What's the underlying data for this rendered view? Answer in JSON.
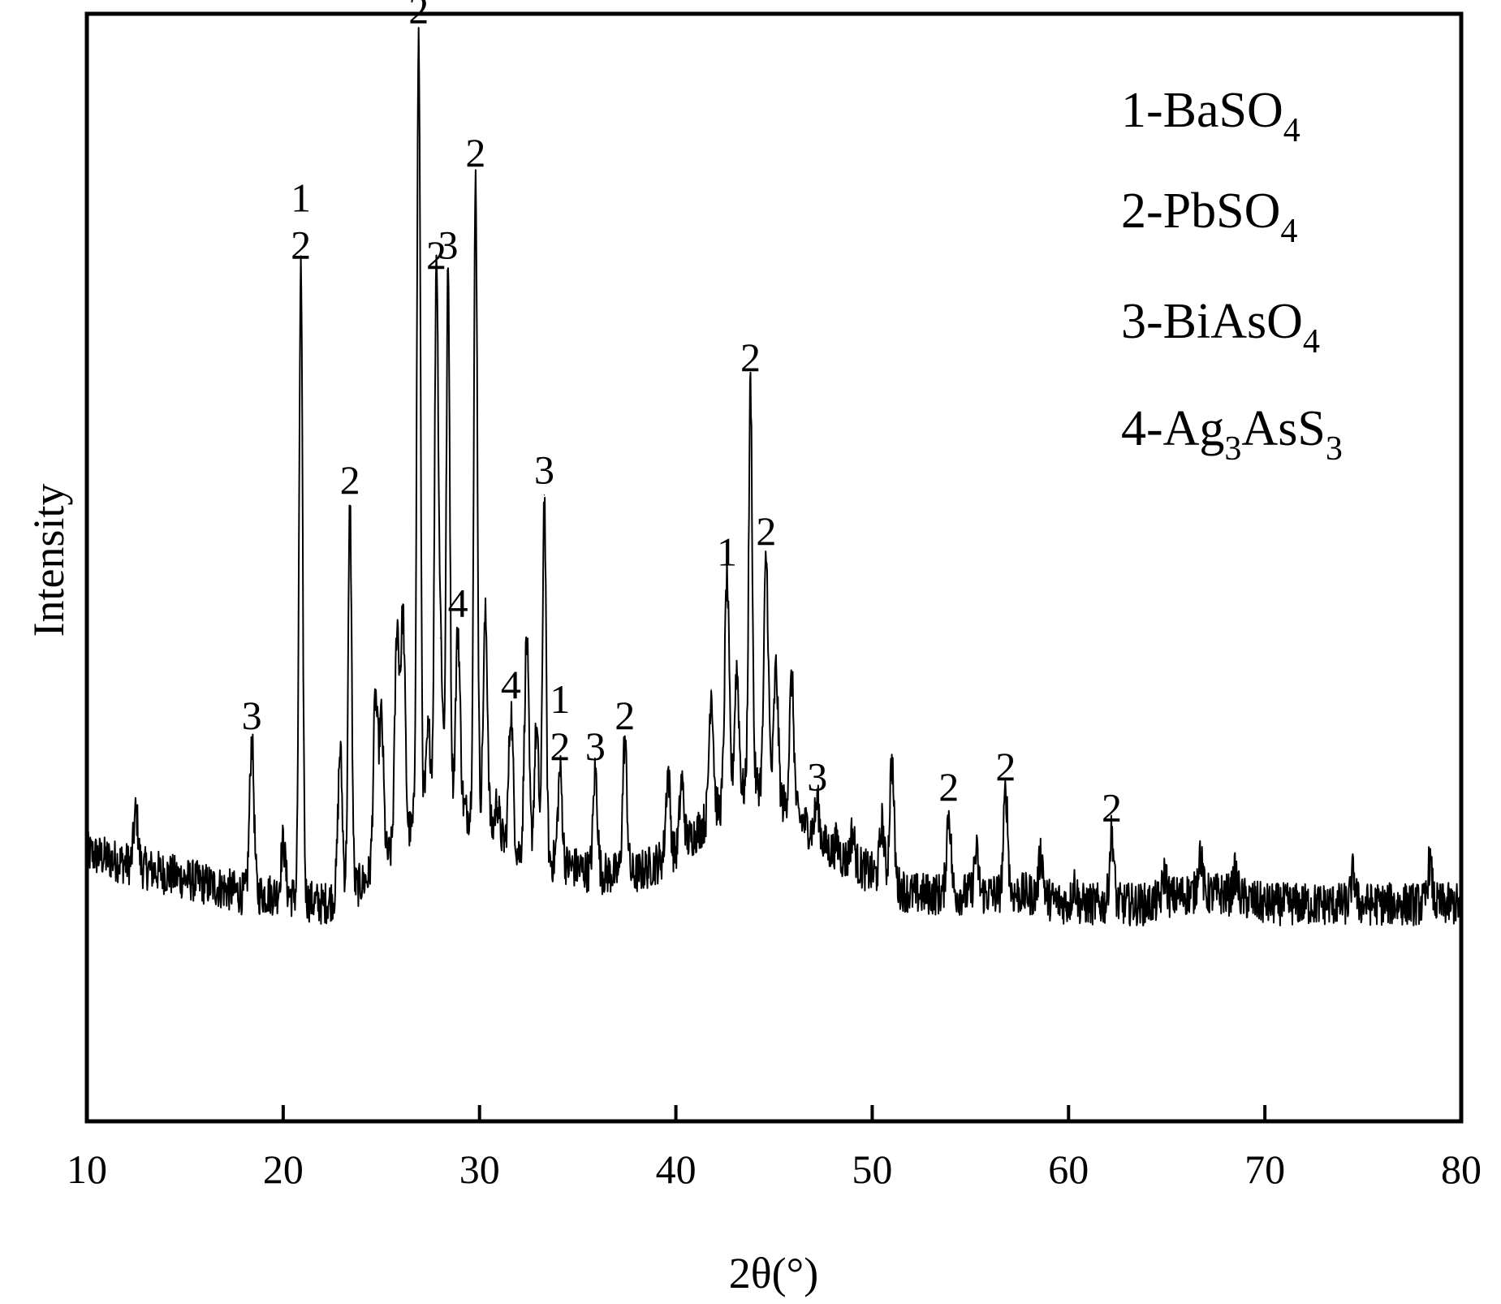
{
  "chart_data": {
    "type": "line",
    "title": "",
    "xlabel": "2θ(°)",
    "ylabel": "Intensity",
    "xlim": [
      10,
      80
    ],
    "ylim": [
      0,
      100
    ],
    "xticks": [
      10,
      20,
      30,
      40,
      50,
      60,
      70,
      80
    ],
    "xtick_labels": [
      "10",
      "20",
      "30",
      "40",
      "50",
      "60",
      "70",
      "80"
    ],
    "yticks_shown": false,
    "grid": false,
    "legend_position": "top-right",
    "legend": [
      {
        "id": "1",
        "prefix": "1-BaSO",
        "subscript": "4",
        "suffix": ""
      },
      {
        "id": "2",
        "prefix": "2-PbSO",
        "subscript": "4",
        "suffix": ""
      },
      {
        "id": "3",
        "prefix": "3-BiAsO",
        "subscript": "4",
        "suffix": ""
      },
      {
        "id": "4",
        "prefix": "4-Ag",
        "subscript": "3",
        "suffix": "AsS",
        "subscript2": "3"
      }
    ],
    "baseline": [
      [
        10,
        19
      ],
      [
        12,
        18
      ],
      [
        14,
        17
      ],
      [
        16,
        16
      ],
      [
        18,
        15
      ],
      [
        20,
        15
      ],
      [
        22,
        14
      ],
      [
        24,
        16
      ],
      [
        26,
        20
      ],
      [
        28,
        25
      ],
      [
        30,
        22
      ],
      [
        32,
        19
      ],
      [
        34,
        18
      ],
      [
        36,
        17
      ],
      [
        38,
        17
      ],
      [
        40,
        19
      ],
      [
        42,
        23
      ],
      [
        44,
        26
      ],
      [
        46,
        23
      ],
      [
        48,
        19
      ],
      [
        50,
        17
      ],
      [
        52,
        15
      ],
      [
        54,
        15
      ],
      [
        56,
        15
      ],
      [
        58,
        15
      ],
      [
        60,
        14
      ],
      [
        62,
        14
      ],
      [
        64,
        14
      ],
      [
        66,
        15
      ],
      [
        68,
        15
      ],
      [
        70,
        14
      ],
      [
        72,
        14
      ],
      [
        74,
        14
      ],
      [
        76,
        14
      ],
      [
        78,
        14
      ],
      [
        80,
        14
      ]
    ],
    "peaks": [
      {
        "x": 12.5,
        "y": 23
      },
      {
        "x": 18.4,
        "y": 30,
        "label": "3"
      },
      {
        "x": 20.0,
        "y": 20
      },
      {
        "x": 20.9,
        "y": 76,
        "label": "1\n2"
      },
      {
        "x": 22.9,
        "y": 29
      },
      {
        "x": 23.4,
        "y": 53,
        "label": "2"
      },
      {
        "x": 24.7,
        "y": 34
      },
      {
        "x": 25.0,
        "y": 32
      },
      {
        "x": 25.8,
        "y": 41
      },
      {
        "x": 26.1,
        "y": 42
      },
      {
        "x": 26.9,
        "y": 99,
        "label": "2"
      },
      {
        "x": 27.4,
        "y": 31
      },
      {
        "x": 27.8,
        "y": 75,
        "label": "2"
      },
      {
        "x": 28.0,
        "y": 40
      },
      {
        "x": 28.4,
        "y": 76,
        "label": "3"
      },
      {
        "x": 28.9,
        "y": 41,
        "label": "4"
      },
      {
        "x": 29.8,
        "y": 85,
        "label": "2"
      },
      {
        "x": 30.3,
        "y": 42
      },
      {
        "x": 30.9,
        "y": 24
      },
      {
        "x": 31.6,
        "y": 33,
        "label": "4"
      },
      {
        "x": 32.4,
        "y": 40
      },
      {
        "x": 32.9,
        "y": 31
      },
      {
        "x": 33.3,
        "y": 54,
        "label": "3"
      },
      {
        "x": 34.1,
        "y": 27,
        "label": "1\n2"
      },
      {
        "x": 35.9,
        "y": 27,
        "label": "3"
      },
      {
        "x": 37.4,
        "y": 30,
        "label": "2"
      },
      {
        "x": 39.6,
        "y": 27
      },
      {
        "x": 40.3,
        "y": 26
      },
      {
        "x": 41.8,
        "y": 35
      },
      {
        "x": 42.6,
        "y": 46,
        "label": "1"
      },
      {
        "x": 43.1,
        "y": 37
      },
      {
        "x": 43.8,
        "y": 65,
        "label": "2"
      },
      {
        "x": 44.6,
        "y": 48,
        "label": "2"
      },
      {
        "x": 45.1,
        "y": 37
      },
      {
        "x": 45.9,
        "y": 36
      },
      {
        "x": 47.2,
        "y": 24,
        "label": "3"
      },
      {
        "x": 48.2,
        "y": 20
      },
      {
        "x": 49.0,
        "y": 21
      },
      {
        "x": 50.5,
        "y": 22
      },
      {
        "x": 51.0,
        "y": 28
      },
      {
        "x": 53.9,
        "y": 23,
        "label": "2"
      },
      {
        "x": 55.3,
        "y": 19
      },
      {
        "x": 56.8,
        "y": 25,
        "label": "2"
      },
      {
        "x": 58.6,
        "y": 19
      },
      {
        "x": 60.3,
        "y": 16
      },
      {
        "x": 62.2,
        "y": 21,
        "label": "2"
      },
      {
        "x": 64.9,
        "y": 17
      },
      {
        "x": 66.7,
        "y": 19
      },
      {
        "x": 68.5,
        "y": 17
      },
      {
        "x": 74.5,
        "y": 17
      },
      {
        "x": 78.4,
        "y": 18
      }
    ]
  }
}
